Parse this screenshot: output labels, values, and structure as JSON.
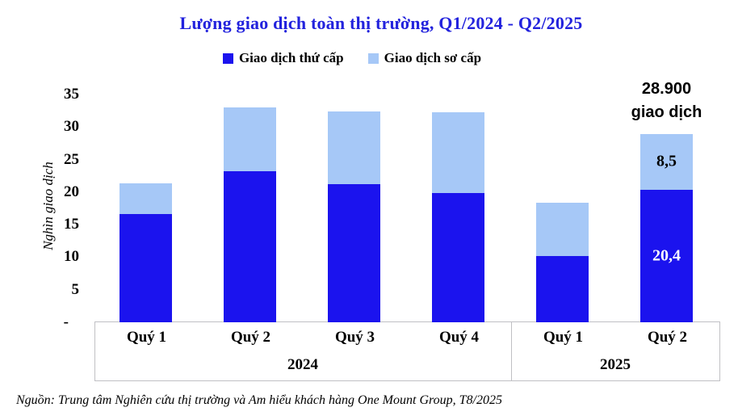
{
  "title": "Lượng giao dịch toàn thị trường, Q1/2024 - Q2/2025",
  "title_color": "#2222dd",
  "legend": [
    {
      "label": "Giao dịch thứ cấp",
      "color": "#1b13ee"
    },
    {
      "label": "Giao dịch sơ cấp",
      "color": "#a6c8f7"
    }
  ],
  "annotation": {
    "line1": "28.900",
    "line2": "giao dịch"
  },
  "source": "Nguồn: Trung tâm Nghiên cứu thị trường và Am hiểu khách hàng One Mount Group, T8/2025",
  "chart_data": {
    "type": "bar",
    "stacked": true,
    "title": "Lượng giao dịch toàn thị trường, Q1/2024 - Q2/2025",
    "ylabel": "Nghìn giao dịch",
    "categories": [
      "Quý 1",
      "Quý 2",
      "Quý 3",
      "Quý 4",
      "Quý 1",
      "Quý 2"
    ],
    "groups": [
      {
        "label": "2024",
        "span": 4
      },
      {
        "label": "2025",
        "span": 2
      }
    ],
    "series": [
      {
        "name": "Giao dịch thứ cấp",
        "color": "#1b13ee",
        "values": [
          16.6,
          23.2,
          21.2,
          19.9,
          10.2,
          20.4
        ]
      },
      {
        "name": "Giao dịch sơ cấp",
        "color": "#a6c8f7",
        "values": [
          4.7,
          9.8,
          11.2,
          12.4,
          8.2,
          8.5
        ]
      }
    ],
    "totals": [
      21.3,
      33.0,
      32.4,
      32.3,
      18.4,
      28.9
    ],
    "bar_labels": [
      {
        "index": 5,
        "series": 1,
        "text": "8,5",
        "color": "#000000"
      },
      {
        "index": 5,
        "series": 0,
        "text": "20,4",
        "color": "#ffffff"
      }
    ],
    "annotation_text": "28.900 giao dịch",
    "annotation_bar_index": 5,
    "yticks": [
      35,
      30,
      25,
      20,
      15,
      10,
      5
    ],
    "zero_tick_label": "-",
    "ylim": [
      0,
      36
    ],
    "grid": false,
    "legend_position": "top",
    "border_color": "#c0c0c4"
  }
}
